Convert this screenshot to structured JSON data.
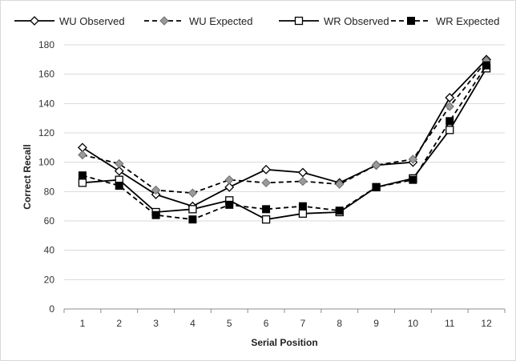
{
  "chart_data": {
    "type": "line",
    "title": "",
    "xlabel": "Serial Position",
    "ylabel": "Correct Recall",
    "ylim": [
      0,
      180
    ],
    "yticks": [
      0,
      20,
      40,
      60,
      80,
      100,
      120,
      140,
      160,
      180
    ],
    "grid": "horizontal",
    "legend_position": "top",
    "categories": [
      "1",
      "2",
      "3",
      "4",
      "5",
      "6",
      "7",
      "8",
      "9",
      "10",
      "11",
      "12"
    ],
    "series": [
      {
        "name": "WU Observed",
        "line_style": "solid",
        "marker": "open-diamond",
        "color": "#000000",
        "values": [
          110,
          94,
          78,
          70,
          83,
          95,
          93,
          86,
          98,
          100,
          144,
          170
        ]
      },
      {
        "name": "WU Expected",
        "line_style": "dashed",
        "marker": "gray-diamond",
        "color": "#000000",
        "marker_color": "#9a9a9a",
        "values": [
          105,
          99,
          81,
          79,
          88,
          86,
          87,
          85,
          98,
          102,
          138,
          169
        ]
      },
      {
        "name": "WR Observed",
        "line_style": "solid",
        "marker": "open-square",
        "color": "#000000",
        "values": [
          86,
          88,
          66,
          68,
          74,
          61,
          65,
          66,
          83,
          89,
          122,
          164
        ]
      },
      {
        "name": "WR Expected",
        "line_style": "dashed",
        "marker": "filled-square",
        "color": "#000000",
        "values": [
          91,
          84,
          64,
          61,
          71,
          68,
          70,
          67,
          83,
          88,
          128,
          166
        ]
      }
    ]
  }
}
